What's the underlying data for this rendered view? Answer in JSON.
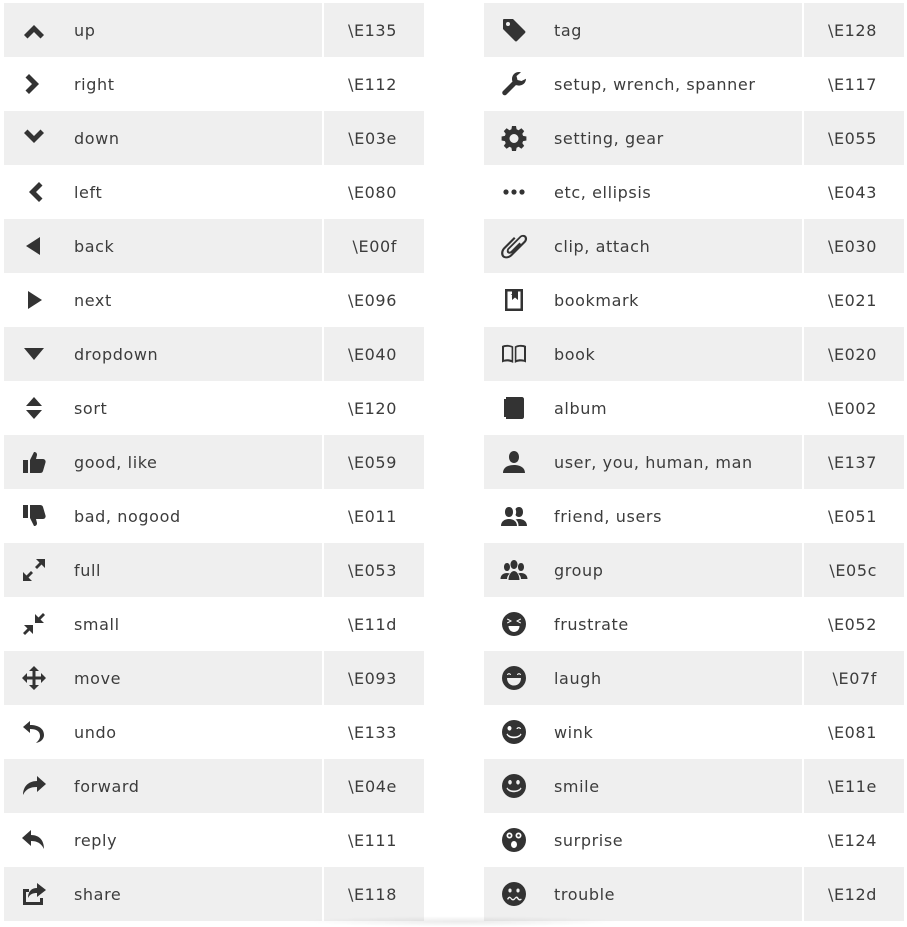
{
  "left": [
    {
      "name": "up",
      "code": "\\E135",
      "icon": "chevron-up-icon"
    },
    {
      "name": "right",
      "code": "\\E112",
      "icon": "chevron-right-icon"
    },
    {
      "name": "down",
      "code": "\\E03e",
      "icon": "chevron-down-icon"
    },
    {
      "name": "left",
      "code": "\\E080",
      "icon": "chevron-left-icon"
    },
    {
      "name": "back",
      "code": "\\E00f",
      "icon": "triangle-left-icon"
    },
    {
      "name": "next",
      "code": "\\E096",
      "icon": "triangle-right-icon"
    },
    {
      "name": "dropdown",
      "code": "\\E040",
      "icon": "triangle-down-icon"
    },
    {
      "name": "sort",
      "code": "\\E120",
      "icon": "sort-icon"
    },
    {
      "name": "good, like",
      "code": "\\E059",
      "icon": "thumbs-up-icon"
    },
    {
      "name": "bad, nogood",
      "code": "\\E011",
      "icon": "thumbs-down-icon"
    },
    {
      "name": "full",
      "code": "\\E053",
      "icon": "expand-icon"
    },
    {
      "name": "small",
      "code": "\\E11d",
      "icon": "compress-icon"
    },
    {
      "name": "move",
      "code": "\\E093",
      "icon": "move-icon"
    },
    {
      "name": "undo",
      "code": "\\E133",
      "icon": "undo-icon"
    },
    {
      "name": "forward",
      "code": "\\E04e",
      "icon": "forward-icon"
    },
    {
      "name": "reply",
      "code": "\\E111",
      "icon": "reply-icon"
    },
    {
      "name": "share",
      "code": "\\E118",
      "icon": "share-icon"
    }
  ],
  "right": [
    {
      "name": "tag",
      "code": "\\E128",
      "icon": "tag-icon"
    },
    {
      "name": "setup, wrench, spanner",
      "code": "\\E117",
      "icon": "wrench-icon"
    },
    {
      "name": "setting, gear",
      "code": "\\E055",
      "icon": "gear-icon"
    },
    {
      "name": "etc, ellipsis",
      "code": "\\E043",
      "icon": "ellipsis-icon"
    },
    {
      "name": "clip, attach",
      "code": "\\E030",
      "icon": "paperclip-icon"
    },
    {
      "name": "bookmark",
      "code": "\\E021",
      "icon": "bookmark-icon"
    },
    {
      "name": "book",
      "code": "\\E020",
      "icon": "book-icon"
    },
    {
      "name": "album",
      "code": "\\E002",
      "icon": "album-icon"
    },
    {
      "name": "user, you, human, man",
      "code": "\\E137",
      "icon": "user-icon"
    },
    {
      "name": "friend, users",
      "code": "\\E051",
      "icon": "users-icon"
    },
    {
      "name": "group",
      "code": "\\E05c",
      "icon": "group-icon"
    },
    {
      "name": "frustrate",
      "code": "\\E052",
      "icon": "frustrate-face-icon"
    },
    {
      "name": "laugh",
      "code": "\\E07f",
      "icon": "laugh-face-icon"
    },
    {
      "name": "wink",
      "code": "\\E081",
      "icon": "wink-face-icon"
    },
    {
      "name": "smile",
      "code": "\\E11e",
      "icon": "smile-face-icon"
    },
    {
      "name": "surprise",
      "code": "\\E124",
      "icon": "surprise-face-icon"
    },
    {
      "name": "trouble",
      "code": "\\E12d",
      "icon": "trouble-face-icon"
    }
  ]
}
